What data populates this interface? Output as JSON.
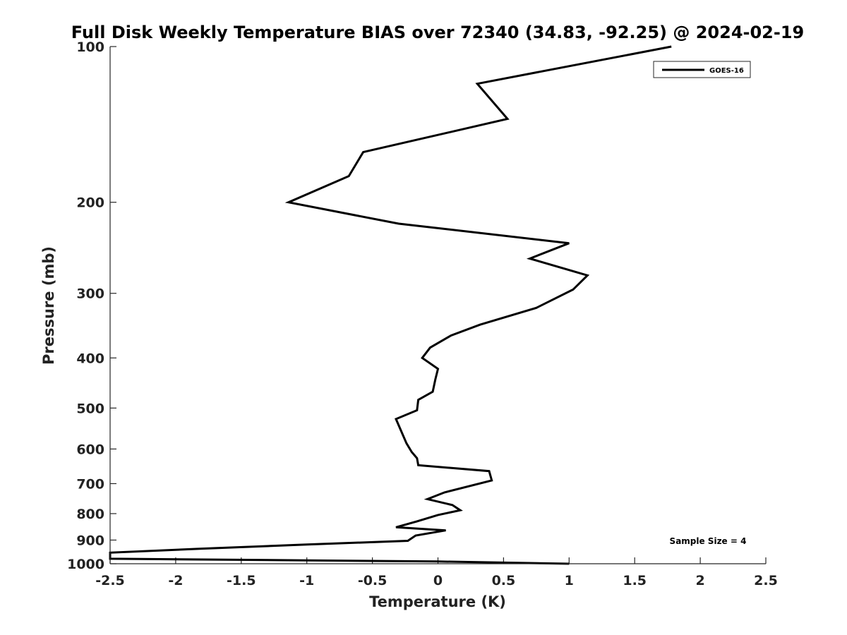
{
  "chart_data": {
    "type": "line",
    "title": "Full Disk Weekly Temperature BIAS over 72340 (34.83, -92.25) @ 2024-02-19",
    "xlabel": "Temperature (K)",
    "ylabel": "Pressure (mb)",
    "xlim": [
      -2.5,
      2.5
    ],
    "ylim": [
      100,
      1000
    ],
    "y_scale": "log",
    "y_reversed": true,
    "grid": false,
    "legend_position": "top-right",
    "xticks": [
      -2.5,
      -2,
      -1.5,
      -1,
      -0.5,
      0,
      0.5,
      1,
      1.5,
      2,
      2.5
    ],
    "xtick_labels": [
      "-2.5",
      "-2",
      "-1.5",
      "-1",
      "-0.5",
      "0",
      "0.5",
      "1",
      "1.5",
      "2",
      "2.5"
    ],
    "yticks": [
      100,
      200,
      300,
      400,
      500,
      600,
      700,
      800,
      900,
      1000
    ],
    "ytick_labels": [
      "100",
      "200",
      "300",
      "400",
      "500",
      "600",
      "700",
      "800",
      "900",
      "1000"
    ],
    "series": [
      {
        "name": "GOES-16",
        "color": "#000000",
        "points": [
          [
            1.78,
            100
          ],
          [
            0.3,
            118
          ],
          [
            0.53,
            138
          ],
          [
            -0.57,
            160
          ],
          [
            -0.68,
            178
          ],
          [
            -1.14,
            200
          ],
          [
            -0.3,
            220
          ],
          [
            1.0,
            240
          ],
          [
            0.7,
            257
          ],
          [
            1.14,
            277
          ],
          [
            1.03,
            295
          ],
          [
            0.75,
            320
          ],
          [
            0.32,
            345
          ],
          [
            0.1,
            362
          ],
          [
            -0.06,
            382
          ],
          [
            -0.12,
            400
          ],
          [
            0.0,
            420
          ],
          [
            -0.02,
            440
          ],
          [
            -0.04,
            465
          ],
          [
            -0.15,
            482
          ],
          [
            -0.16,
            505
          ],
          [
            -0.32,
            525
          ],
          [
            -0.24,
            585
          ],
          [
            -0.2,
            608
          ],
          [
            -0.16,
            625
          ],
          [
            -0.15,
            645
          ],
          [
            0.39,
            662
          ],
          [
            0.41,
            690
          ],
          [
            0.05,
            728
          ],
          [
            -0.08,
            750
          ],
          [
            0.11,
            770
          ],
          [
            0.17,
            788
          ],
          [
            0.0,
            805
          ],
          [
            -0.16,
            828
          ],
          [
            -0.32,
            850
          ],
          [
            0.06,
            862
          ],
          [
            -0.17,
            882
          ],
          [
            -0.23,
            903
          ],
          [
            -1.0,
            918
          ],
          [
            -1.8,
            935
          ],
          [
            -2.5,
            952
          ],
          [
            -2.5,
            978
          ],
          [
            -1.0,
            985
          ],
          [
            0.0,
            990
          ],
          [
            1.0,
            1000
          ]
        ]
      }
    ],
    "annotation": "Sample Size = 4"
  }
}
